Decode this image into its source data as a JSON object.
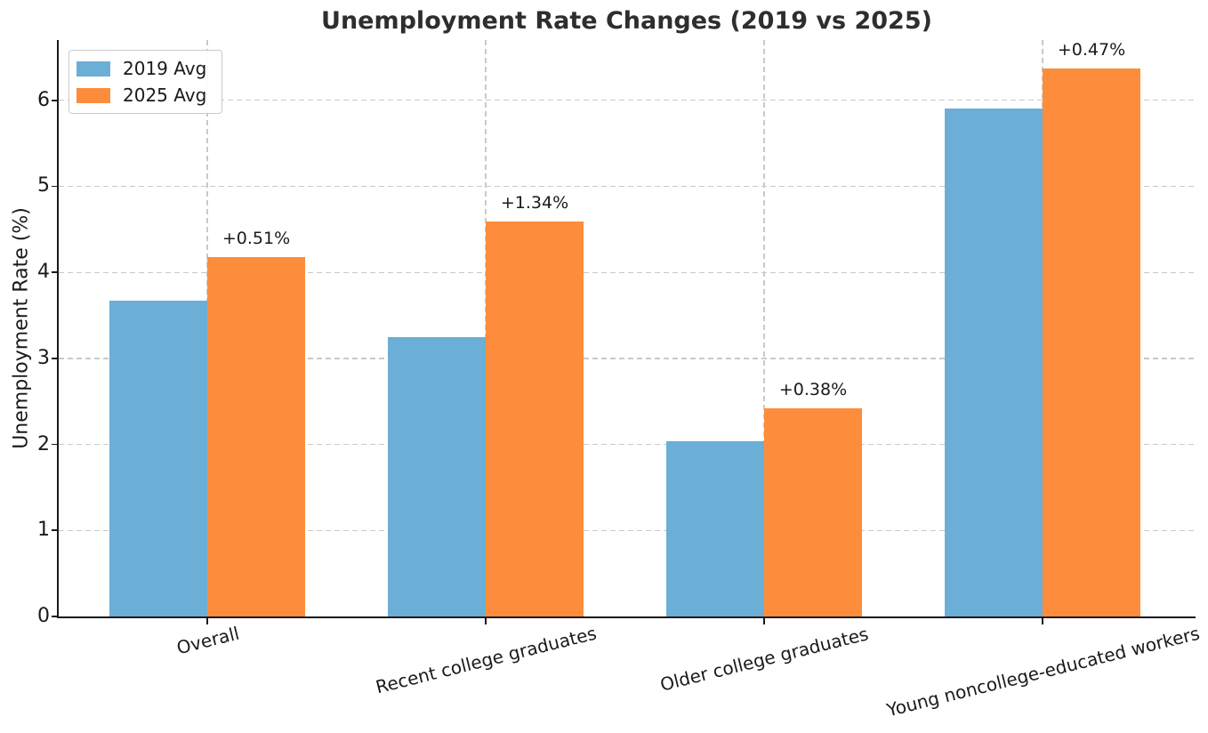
{
  "chart_data": {
    "type": "bar",
    "title": "Unemployment Rate Changes (2019 vs 2025)",
    "xlabel": "",
    "ylabel": "Unemployment Rate (%)",
    "categories": [
      "Overall",
      "Recent college graduates",
      "Older college graduates",
      "Young noncollege-educated workers"
    ],
    "series": [
      {
        "name": "2019 Avg",
        "color": "#6baed6",
        "values": [
          3.67,
          3.25,
          2.04,
          5.9
        ]
      },
      {
        "name": "2025 Avg",
        "color": "#fd8d3c",
        "values": [
          4.18,
          4.59,
          2.42,
          6.37
        ]
      }
    ],
    "annotations": [
      "+0.51%",
      "+1.34%",
      "+0.38%",
      "+0.47%"
    ],
    "ylim": [
      0,
      6.7
    ],
    "yticks": [
      0,
      1,
      2,
      3,
      4,
      5,
      6
    ],
    "grid": true,
    "grid_style": "dashed",
    "legend_position": "upper left",
    "colors": {
      "background": "#ffffff",
      "grid": "#c9c9c9",
      "axis": "#1a1a1a",
      "text": "#1a1a1a",
      "title": "#2e2e2e"
    }
  }
}
